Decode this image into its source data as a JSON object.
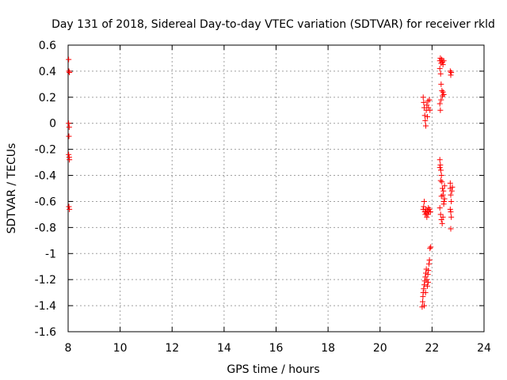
{
  "chart_data": {
    "type": "scatter",
    "title": "Day 131 of 2018, Sidereal Day-to-day VTEC variation (SDTVAR) for receiver rkld",
    "xlabel": "GPS time / hours",
    "ylabel": "SDTVAR / TECUs",
    "xlim": [
      8,
      24
    ],
    "ylim": [
      -1.6,
      0.6
    ],
    "xticks": [
      8,
      10,
      12,
      14,
      16,
      18,
      20,
      22,
      24
    ],
    "yticks": [
      0.6,
      0.4,
      0.2,
      0,
      -0.2,
      -0.4,
      -0.6,
      -0.8,
      -1,
      -1.2,
      -1.4,
      -1.6
    ],
    "xtick_labels": [
      "8",
      "10",
      "12",
      "14",
      "16",
      "18",
      "20",
      "22",
      "24"
    ],
    "ytick_labels": [
      "0.6",
      "0.4",
      "0.2",
      "0",
      "-0.2",
      "-0.4",
      "-0.6",
      "-0.8",
      "-1",
      "-1.2",
      "-1.4",
      "-1.6"
    ],
    "grid": true,
    "marker": "+",
    "color": "#ff0000",
    "series": [
      {
        "name": "SDTVAR",
        "points": [
          [
            8.02,
            0.49
          ],
          [
            8.03,
            0.4
          ],
          [
            8.05,
            0.39
          ],
          [
            8.02,
            0.0
          ],
          [
            8.04,
            -0.03
          ],
          [
            8.03,
            -0.1
          ],
          [
            8.02,
            -0.24
          ],
          [
            8.04,
            -0.26
          ],
          [
            8.05,
            -0.28
          ],
          [
            8.03,
            -0.64
          ],
          [
            8.05,
            -0.66
          ],
          [
            21.62,
            -1.41
          ],
          [
            21.64,
            -1.37
          ],
          [
            21.65,
            -1.33
          ],
          [
            21.66,
            -1.3
          ],
          [
            21.68,
            -1.27
          ],
          [
            21.7,
            -1.24
          ],
          [
            21.72,
            -1.21
          ],
          [
            21.74,
            -1.18
          ],
          [
            21.76,
            -1.15
          ],
          [
            21.78,
            -1.12
          ],
          [
            21.8,
            -1.2
          ],
          [
            21.82,
            -1.25
          ],
          [
            21.84,
            -1.16
          ],
          [
            21.86,
            -1.13
          ],
          [
            21.88,
            -1.08
          ],
          [
            21.9,
            -1.05
          ],
          [
            21.92,
            -0.96
          ],
          [
            21.95,
            -0.95
          ],
          [
            21.7,
            -1.4
          ],
          [
            21.75,
            -1.3
          ],
          [
            21.85,
            -1.22
          ],
          [
            21.66,
            -0.66
          ],
          [
            21.68,
            -0.64
          ],
          [
            21.7,
            -0.6
          ],
          [
            21.72,
            -0.68
          ],
          [
            21.74,
            -0.7
          ],
          [
            21.76,
            -0.66
          ],
          [
            21.78,
            -0.69
          ],
          [
            21.8,
            -0.72
          ],
          [
            21.82,
            -0.67
          ],
          [
            21.84,
            -0.7
          ],
          [
            21.86,
            -0.65
          ],
          [
            21.88,
            -0.68
          ],
          [
            21.9,
            -0.66
          ],
          [
            21.94,
            -0.68
          ],
          [
            21.66,
            0.2
          ],
          [
            21.68,
            0.16
          ],
          [
            21.7,
            0.12
          ],
          [
            21.72,
            0.06
          ],
          [
            21.74,
            0.02
          ],
          [
            21.76,
            -0.02
          ],
          [
            21.78,
            0.1
          ],
          [
            21.8,
            0.14
          ],
          [
            21.82,
            0.05
          ],
          [
            21.84,
            0.17
          ],
          [
            21.86,
            0.12
          ],
          [
            21.9,
            0.18
          ],
          [
            21.92,
            0.1
          ],
          [
            22.3,
            0.48
          ],
          [
            22.32,
            0.5
          ],
          [
            22.35,
            0.46
          ],
          [
            22.37,
            0.49
          ],
          [
            22.4,
            0.47
          ],
          [
            22.42,
            0.45
          ],
          [
            22.45,
            0.48
          ],
          [
            22.3,
            0.42
          ],
          [
            22.33,
            0.38
          ],
          [
            22.35,
            0.3
          ],
          [
            22.38,
            0.25
          ],
          [
            22.4,
            0.21
          ],
          [
            22.42,
            0.24
          ],
          [
            22.45,
            0.22
          ],
          [
            22.3,
            0.15
          ],
          [
            22.32,
            0.1
          ],
          [
            22.35,
            0.18
          ],
          [
            22.7,
            0.4
          ],
          [
            22.72,
            0.37
          ],
          [
            22.74,
            0.39
          ],
          [
            22.3,
            -0.28
          ],
          [
            22.32,
            -0.32
          ],
          [
            22.34,
            -0.36
          ],
          [
            22.36,
            -0.4
          ],
          [
            22.38,
            -0.45
          ],
          [
            22.4,
            -0.5
          ],
          [
            22.42,
            -0.55
          ],
          [
            22.44,
            -0.52
          ],
          [
            22.46,
            -0.6
          ],
          [
            22.48,
            -0.58
          ],
          [
            22.3,
            -0.65
          ],
          [
            22.33,
            -0.7
          ],
          [
            22.36,
            -0.74
          ],
          [
            22.39,
            -0.77
          ],
          [
            22.42,
            -0.72
          ],
          [
            22.45,
            -0.62
          ],
          [
            22.48,
            -0.48
          ],
          [
            22.3,
            -0.34
          ],
          [
            22.33,
            -0.44
          ],
          [
            22.36,
            -0.56
          ],
          [
            22.7,
            -0.5
          ],
          [
            22.72,
            -0.55
          ],
          [
            22.74,
            -0.6
          ],
          [
            22.7,
            -0.66
          ],
          [
            22.72,
            -0.68
          ],
          [
            22.74,
            -0.72
          ],
          [
            22.72,
            -0.81
          ],
          [
            22.76,
            -0.52
          ],
          [
            22.78,
            -0.49
          ],
          [
            22.7,
            -0.46
          ]
        ]
      }
    ]
  }
}
